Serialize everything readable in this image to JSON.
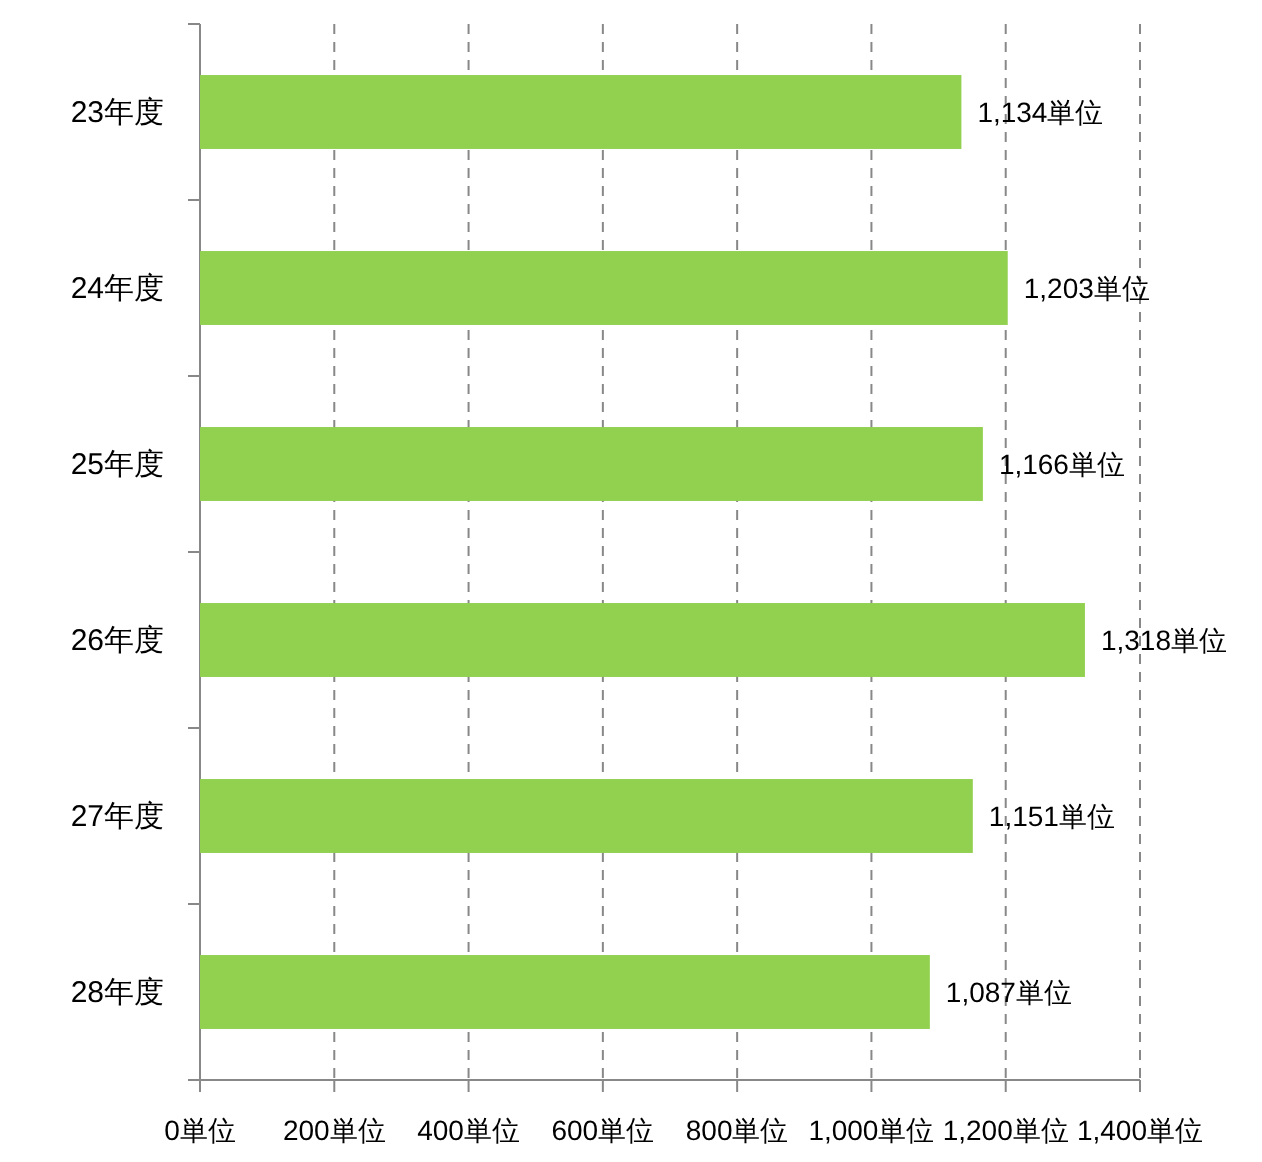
{
  "chart_data": {
    "type": "bar",
    "orientation": "horizontal",
    "categories": [
      "23年度",
      "24年度",
      "25年度",
      "26年度",
      "27年度",
      "28年度"
    ],
    "values": [
      1134,
      1203,
      1166,
      1318,
      1151,
      1087
    ],
    "value_labels": [
      "1,134単位",
      "1,203単位",
      "1,166単位",
      "1,318単位",
      "1,151単位",
      "1,087単位"
    ],
    "color": "#92d050",
    "xlim": [
      0,
      1400
    ],
    "xticks": [
      {
        "value": 0,
        "label": "0単位"
      },
      {
        "value": 200,
        "label": "200単位"
      },
      {
        "value": 400,
        "label": "400単位"
      },
      {
        "value": 600,
        "label": "600単位"
      },
      {
        "value": 800,
        "label": "800単位"
      },
      {
        "value": 1000,
        "label": "1,000単位"
      },
      {
        "value": 1200,
        "label": "1,200単位"
      },
      {
        "value": 1400,
        "label": "1,400単位"
      }
    ],
    "grid": "x"
  }
}
